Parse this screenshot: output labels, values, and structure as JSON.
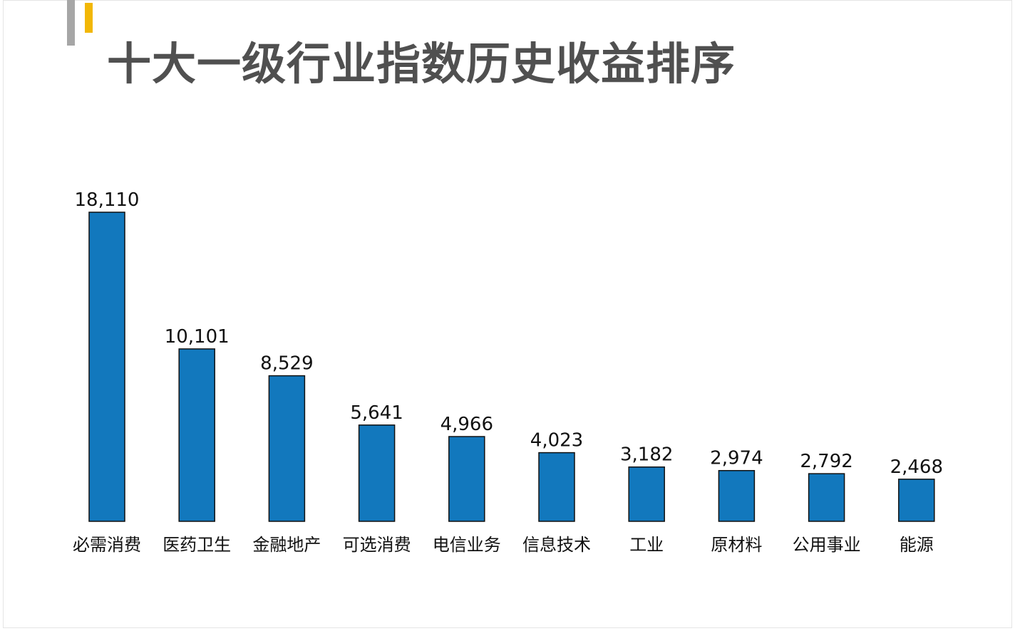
{
  "slide": {
    "title": "十大一级行业指数历史收益排序",
    "accent_colors": {
      "gray": "#a6a6a6",
      "yellow": "#f2b705"
    }
  },
  "chart_data": {
    "type": "bar",
    "title": "",
    "xlabel": "",
    "ylabel": "",
    "categories": [
      "必需消费",
      "医药卫生",
      "金融地产",
      "可选消费",
      "电信业务",
      "信息技术",
      "工业",
      "原材料",
      "公用事业",
      "能源"
    ],
    "values": [
      18110,
      10101,
      8529,
      5641,
      4966,
      4023,
      3182,
      2974,
      2792,
      2468
    ],
    "value_labels": [
      "18,110",
      "10,101",
      "8,529",
      "5,641",
      "4,966",
      "4,023",
      "3,182",
      "2,974",
      "2,792",
      "2,468"
    ],
    "ylim": [
      0,
      18110
    ],
    "bar_color": "#1278bd",
    "grid": false,
    "legend": "none"
  }
}
